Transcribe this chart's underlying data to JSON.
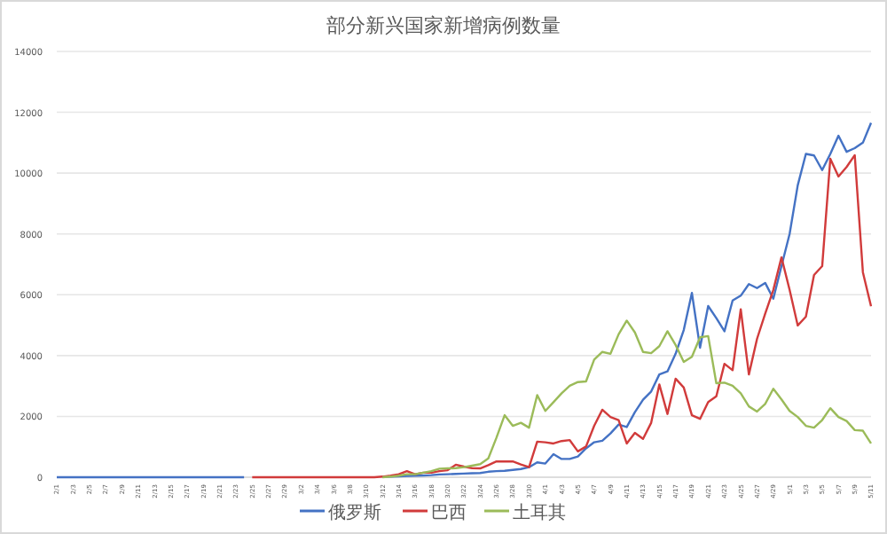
{
  "chart_data": {
    "type": "line",
    "title": "部分新兴国家新增病例数量",
    "categories": [
      "2/1",
      null,
      "2/3",
      null,
      "2/5",
      null,
      "2/7",
      null,
      "2/9",
      null,
      "2/11",
      null,
      "2/13",
      null,
      "2/15",
      null,
      "2/17",
      null,
      "2/19",
      null,
      "2/21",
      null,
      "2/23",
      null,
      "2/25",
      null,
      "2/27",
      null,
      "2/29",
      null,
      "3/2",
      null,
      "3/4",
      null,
      "3/6",
      null,
      "3/8",
      null,
      "3/10",
      null,
      "3/12",
      null,
      "3/14",
      null,
      "3/16",
      null,
      "3/18",
      null,
      "3/20",
      null,
      "3/22",
      null,
      "3/24",
      null,
      "3/26",
      null,
      "3/28",
      null,
      "3/30",
      null,
      "4/1",
      null,
      "4/3",
      null,
      "4/5",
      null,
      "4/7",
      null,
      "4/9",
      null,
      "4/11",
      null,
      "4/13",
      null,
      "4/15",
      null,
      "4/17",
      null,
      "4/19",
      null,
      "4/21",
      null,
      "4/23",
      null,
      "4/25",
      null,
      "4/27",
      null,
      "4/29",
      null,
      "5/1",
      null,
      "5/3",
      null,
      "5/5",
      null,
      "5/7",
      null,
      "5/9",
      null,
      "5/11"
    ],
    "series": [
      {
        "name": "俄罗斯",
        "color": "#4472c4",
        "values": [
          0,
          0,
          0,
          0,
          0,
          0,
          0,
          0,
          0,
          0,
          0,
          0,
          0,
          0,
          0,
          0,
          0,
          0,
          0,
          0,
          0,
          0,
          0,
          0,
          null,
          null,
          null,
          null,
          null,
          null,
          null,
          null,
          null,
          null,
          null,
          null,
          null,
          null,
          null,
          null,
          10,
          20,
          30,
          40,
          50,
          60,
          70,
          90,
          100,
          110,
          120,
          130,
          140,
          180,
          200,
          210,
          240,
          270,
          330,
          490,
          450,
          760,
          600,
          600,
          680,
          950,
          1150,
          1200,
          1440,
          1730,
          1650,
          2140,
          2550,
          2820,
          3380,
          3480,
          4060,
          4840,
          6060,
          4260,
          5630,
          5230,
          4800,
          5810,
          5970,
          6350,
          6220,
          6390,
          5870,
          6940,
          8000,
          9600,
          10630,
          10580,
          10100,
          10630,
          11230,
          10700,
          10820,
          11000,
          11650
        ]
      },
      {
        "name": "巴西",
        "color": "#d13b3b",
        "values": [
          null,
          null,
          null,
          null,
          null,
          null,
          null,
          null,
          null,
          null,
          null,
          null,
          null,
          null,
          null,
          null,
          null,
          null,
          null,
          null,
          null,
          null,
          null,
          null,
          0,
          0,
          0,
          0,
          0,
          0,
          0,
          0,
          0,
          0,
          0,
          0,
          0,
          0,
          0,
          0,
          20,
          50,
          100,
          200,
          100,
          150,
          150,
          200,
          230,
          410,
          350,
          300,
          290,
          400,
          520,
          520,
          520,
          420,
          330,
          1170,
          1150,
          1110,
          1190,
          1220,
          850,
          1010,
          1690,
          2220,
          1980,
          1880,
          1110,
          1460,
          1260,
          1790,
          3050,
          2080,
          3240,
          2950,
          2040,
          1920,
          2470,
          2660,
          3730,
          3520,
          5520,
          3380,
          4550,
          5380,
          6160,
          7230,
          6160,
          4990,
          5280,
          6650,
          6940,
          10470,
          9890,
          10200,
          10590,
          6740,
          5620
        ]
      },
      {
        "name": "土耳其",
        "color": "#9bbb59",
        "values": [
          null,
          null,
          null,
          null,
          null,
          null,
          null,
          null,
          null,
          null,
          null,
          null,
          null,
          null,
          null,
          null,
          null,
          null,
          null,
          null,
          null,
          null,
          null,
          null,
          null,
          null,
          null,
          null,
          null,
          null,
          null,
          null,
          null,
          null,
          null,
          null,
          null,
          null,
          null,
          null,
          0,
          20,
          50,
          100,
          100,
          150,
          200,
          280,
          290,
          300,
          330,
          380,
          430,
          620,
          1300,
          2040,
          1690,
          1790,
          1630,
          2700,
          2180,
          2470,
          2760,
          3010,
          3130,
          3150,
          3870,
          4120,
          4060,
          4700,
          5150,
          4760,
          4120,
          4080,
          4310,
          4800,
          4350,
          3790,
          3960,
          4600,
          4640,
          3090,
          3110,
          3010,
          2760,
          2330,
          2160,
          2410,
          2910,
          2560,
          2180,
          1980,
          1690,
          1630,
          1880,
          2270,
          1980,
          1850,
          1550,
          1530,
          1110
        ]
      }
    ],
    "ylim": [
      0,
      14000
    ],
    "yticks": [
      0,
      2000,
      4000,
      6000,
      8000,
      10000,
      12000,
      14000
    ],
    "grid": "y",
    "legend": "bottom"
  }
}
